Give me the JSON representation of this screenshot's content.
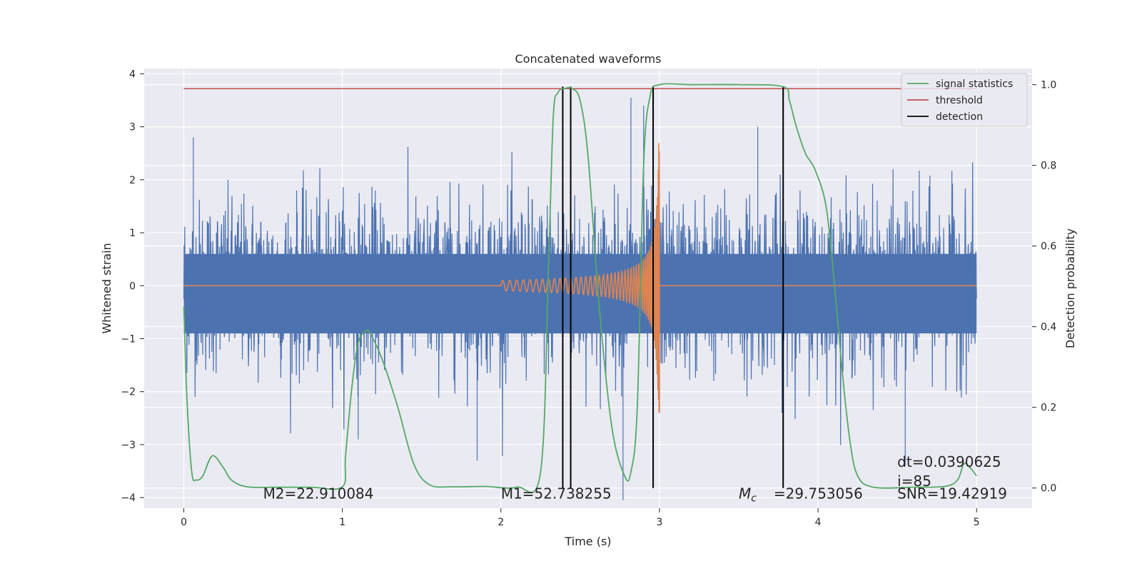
{
  "chart_data": {
    "type": "line",
    "title": "Concatenated waveforms",
    "xlabel": "Time (s)",
    "ylabel": "Whitened strain",
    "ylabel_right": "Detection probability",
    "xlim": [
      -0.25,
      5.35
    ],
    "ylim": [
      -4.2,
      4.1
    ],
    "ylim_right": [
      -0.05,
      1.04
    ],
    "x_ticks": [
      0,
      1,
      2,
      3,
      4,
      5
    ],
    "y_ticks": [
      -4,
      -3,
      -2,
      -1,
      0,
      1,
      2,
      3,
      4
    ],
    "y_ticks_right": [
      0.0,
      0.2,
      0.4,
      0.6,
      0.8,
      1.0
    ],
    "grid": true,
    "legend_position": "top-right",
    "colors": {
      "strain": "#4c72b0",
      "waveform": "#dd8452",
      "signal_statistics": "#55a868",
      "threshold": "#c44e52",
      "detection": "#000000",
      "background": "#eaeaf2"
    },
    "strain_noise": {
      "x_range": [
        0,
        5
      ],
      "dense_band": [
        -0.9,
        0.6
      ],
      "typical_peaks": [
        -2.8,
        2.8
      ],
      "extremes": [
        -4.05,
        3.6
      ]
    },
    "waveform": {
      "x_start": 2.0,
      "x_end": 3.0,
      "amplitude_start": 0.1,
      "amplitude_peak": 2.7,
      "amplitude_min": -2.4
    },
    "threshold": {
      "value": 0.99,
      "x": [
        0,
        5
      ]
    },
    "signal_statistics": {
      "x": [
        0.0,
        0.02,
        0.05,
        0.08,
        0.12,
        0.18,
        0.25,
        0.3,
        0.4,
        0.6,
        0.8,
        1.0,
        1.02,
        1.06,
        1.1,
        1.15,
        1.18,
        1.25,
        1.35,
        1.45,
        1.55,
        1.7,
        1.9,
        2.1,
        2.25,
        2.3,
        2.33,
        2.36,
        2.4,
        2.45,
        2.5,
        2.55,
        2.62,
        2.7,
        2.78,
        2.82,
        2.86,
        2.9,
        2.94,
        3.0,
        3.2,
        3.5,
        3.78,
        3.82,
        3.86,
        3.92,
        3.98,
        4.05,
        4.1,
        4.15,
        4.2,
        4.25,
        4.35,
        4.6,
        4.8,
        4.88,
        4.92,
        4.96,
        5.0
      ],
      "y": [
        0.45,
        0.22,
        0.04,
        0.02,
        0.03,
        0.08,
        0.05,
        0.02,
        0.003,
        0.002,
        0.002,
        0.003,
        0.08,
        0.25,
        0.36,
        0.39,
        0.38,
        0.32,
        0.2,
        0.06,
        0.008,
        0.003,
        0.004,
        0.002,
        0.04,
        0.55,
        0.92,
        0.98,
        0.99,
        0.99,
        0.96,
        0.82,
        0.45,
        0.15,
        0.03,
        0.04,
        0.2,
        0.8,
        0.97,
        1.0,
        1.0,
        1.0,
        0.995,
        0.96,
        0.9,
        0.83,
        0.79,
        0.7,
        0.52,
        0.3,
        0.12,
        0.03,
        0.002,
        0.002,
        0.004,
        0.02,
        0.06,
        0.05,
        0.03
      ]
    },
    "detections": [
      2.39,
      2.44,
      2.96,
      3.78
    ],
    "legend": [
      "signal statistics",
      "threshold",
      "detection"
    ],
    "annotations": [
      {
        "id": "m2",
        "text": "M2=22.910084",
        "x": 0.5,
        "y": -4.02
      },
      {
        "id": "m1",
        "text": "M1=52.738255",
        "x": 2.0,
        "y": -4.02
      },
      {
        "id": "mc_value",
        "text": "=29.753056",
        "x": 3.72,
        "y": -4.02
      },
      {
        "id": "dt",
        "text": "dt=0.0390625",
        "x": 4.5,
        "y": -3.42
      },
      {
        "id": "i",
        "text": " i=85",
        "x": 4.5,
        "y": -3.78
      },
      {
        "id": "snr",
        "text": "SNR=19.42919",
        "x": 4.5,
        "y": -4.02
      }
    ],
    "mc_symbol": {
      "base": "M",
      "sub": "c",
      "x": 3.5,
      "y": -4.02
    }
  }
}
